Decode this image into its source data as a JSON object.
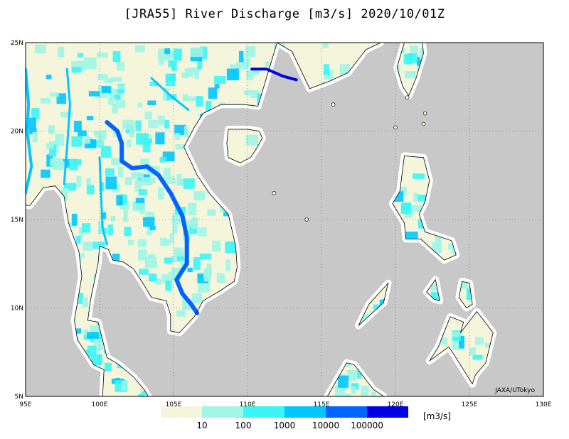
{
  "title": "[JRA55] River Discharge [m3/s] 2020/10/01Z",
  "credit": "JAXA/UTokyo",
  "map": {
    "lon_range": [
      95,
      130
    ],
    "lat_range": [
      5,
      25
    ],
    "ocean_color": "#c8c8c8",
    "land_base_color": "#f5f5dc",
    "coast_color": "#000000",
    "x_ticks": [
      {
        "value": 95,
        "label": "95E"
      },
      {
        "value": 100,
        "label": "100E"
      },
      {
        "value": 105,
        "label": "105E"
      },
      {
        "value": 110,
        "label": "110E"
      },
      {
        "value": 115,
        "label": "115E"
      },
      {
        "value": 120,
        "label": "120E"
      },
      {
        "value": 125,
        "label": "125E"
      },
      {
        "value": 130,
        "label": "130E"
      }
    ],
    "y_ticks": [
      {
        "value": 5,
        "label": "5N"
      },
      {
        "value": 10,
        "label": "10N"
      },
      {
        "value": 15,
        "label": "15N"
      },
      {
        "value": 20,
        "label": "20N"
      },
      {
        "value": 25,
        "label": "25N"
      }
    ]
  },
  "legend": {
    "unit": "[m3/s]",
    "colors": [
      "#f5f5dc",
      "#9ff5e6",
      "#3cf5f5",
      "#00c8ff",
      "#0064ff",
      "#0000e6"
    ],
    "labels": [
      "10",
      "100",
      "1000",
      "10000",
      "100000"
    ]
  }
}
